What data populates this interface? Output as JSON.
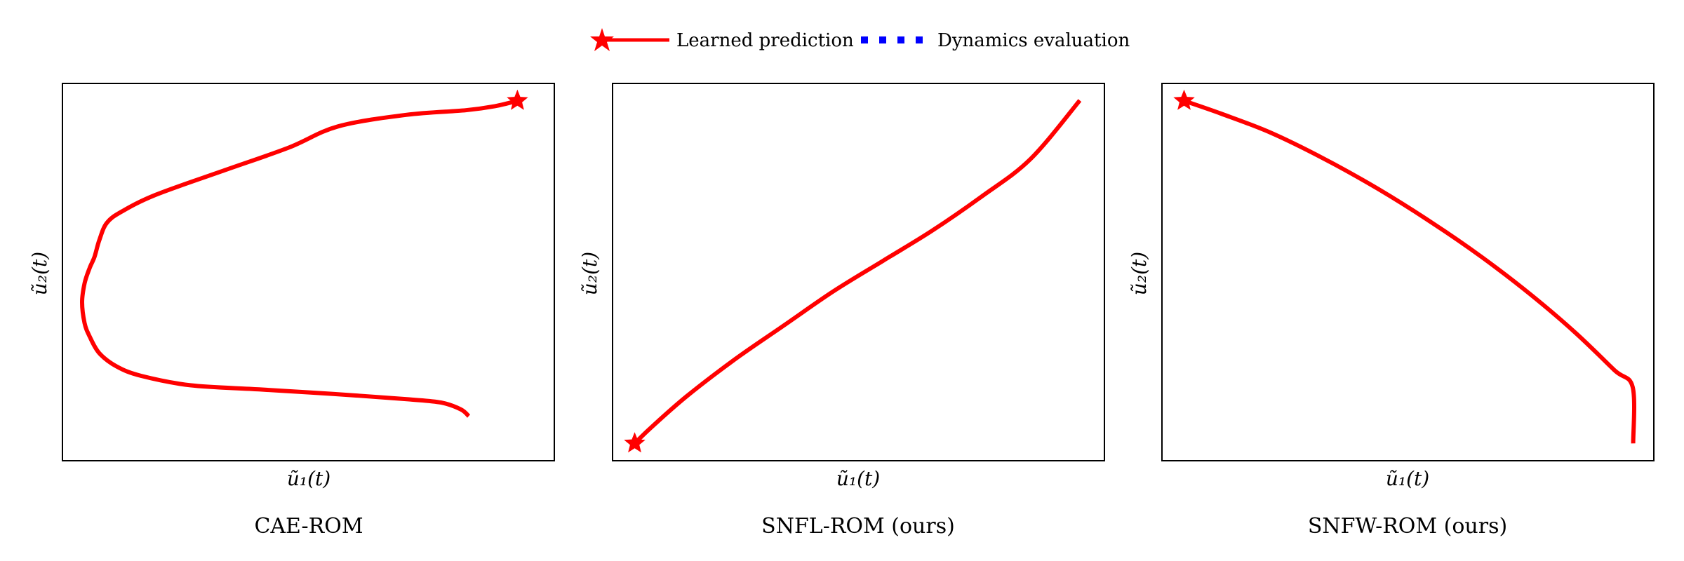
{
  "legend": {
    "items": [
      {
        "label": "Learned prediction",
        "color": "#ff0000",
        "style": "solid",
        "marker": "star"
      },
      {
        "label": "Dynamics evaluation",
        "color": "#0000ff",
        "style": "dotted",
        "marker": "none"
      }
    ]
  },
  "chart_data": [
    {
      "type": "line",
      "title": "CAE-ROM",
      "xlabel": "ũ₁(t)",
      "ylabel": "ũ₂(t)",
      "xlim": [
        0,
        1
      ],
      "ylim": [
        0,
        1
      ],
      "ticks": false,
      "series": [
        {
          "name": "Learned prediction",
          "color": "#ff0000",
          "points": [
            [
              0.925,
              0.954
            ],
            [
              0.88,
              0.94
            ],
            [
              0.82,
              0.929
            ],
            [
              0.7,
              0.917
            ],
            [
              0.56,
              0.886
            ],
            [
              0.46,
              0.83
            ],
            [
              0.33,
              0.77
            ],
            [
              0.19,
              0.705
            ],
            [
              0.12,
              0.66
            ],
            [
              0.09,
              0.63
            ],
            [
              0.075,
              0.585
            ],
            [
              0.065,
              0.54
            ],
            [
              0.055,
              0.51
            ],
            [
              0.045,
              0.47
            ],
            [
              0.04,
              0.42
            ],
            [
              0.045,
              0.365
            ],
            [
              0.055,
              0.33
            ],
            [
              0.075,
              0.285
            ],
            [
              0.11,
              0.25
            ],
            [
              0.16,
              0.225
            ],
            [
              0.26,
              0.2
            ],
            [
              0.4,
              0.189
            ],
            [
              0.55,
              0.177
            ],
            [
              0.7,
              0.163
            ],
            [
              0.77,
              0.154
            ],
            [
              0.81,
              0.136
            ],
            [
              0.826,
              0.118
            ]
          ],
          "marker_at": "start"
        },
        {
          "name": "Dynamics evaluation",
          "color": "#0000ff",
          "points": []
        }
      ]
    },
    {
      "type": "line",
      "title": "SNFL-ROM (ours)",
      "xlabel": "ũ₁(t)",
      "ylabel": "ũ₂(t)",
      "xlim": [
        0,
        1
      ],
      "ylim": [
        0,
        1
      ],
      "ticks": false,
      "series": [
        {
          "name": "Learned prediction",
          "color": "#ff0000",
          "points": [
            [
              0.045,
              0.046
            ],
            [
              0.08,
              0.09
            ],
            [
              0.15,
              0.17
            ],
            [
              0.25,
              0.27
            ],
            [
              0.35,
              0.36
            ],
            [
              0.45,
              0.45
            ],
            [
              0.55,
              0.53
            ],
            [
              0.65,
              0.61
            ],
            [
              0.75,
              0.7
            ],
            [
              0.85,
              0.8
            ],
            [
              0.95,
              0.955
            ]
          ],
          "marker_at": "start"
        },
        {
          "name": "Dynamics evaluation",
          "color": "#0000ff",
          "points": []
        }
      ]
    },
    {
      "type": "line",
      "title": "SNFW-ROM (ours)",
      "xlabel": "ũ₁(t)",
      "ylabel": "ũ₂(t)",
      "xlim": [
        0,
        1
      ],
      "ylim": [
        0,
        1
      ],
      "ticks": false,
      "series": [
        {
          "name": "Learned prediction",
          "color": "#ff0000",
          "points": [
            [
              0.045,
              0.954
            ],
            [
              0.12,
              0.92
            ],
            [
              0.22,
              0.87
            ],
            [
              0.33,
              0.8
            ],
            [
              0.44,
              0.72
            ],
            [
              0.55,
              0.63
            ],
            [
              0.65,
              0.54
            ],
            [
              0.75,
              0.44
            ],
            [
              0.84,
              0.34
            ],
            [
              0.92,
              0.24
            ],
            [
              0.957,
              0.195
            ],
            [
              0.958,
              0.046
            ]
          ],
          "marker_at": "start"
        },
        {
          "name": "Dynamics evaluation",
          "color": "#0000ff",
          "points": []
        }
      ]
    }
  ]
}
